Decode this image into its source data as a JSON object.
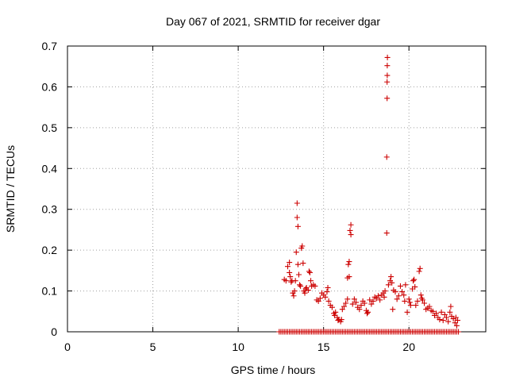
{
  "chart_data": {
    "type": "scatter",
    "title": "Day 067 of 2021, SRMTID for receiver dgar",
    "xlabel": "GPS time / hours",
    "ylabel": "SRMTID / TECUs",
    "xlim": [
      0,
      24.5
    ],
    "ylim": [
      0,
      0.7
    ],
    "xticks": [
      0,
      5,
      10,
      15,
      20
    ],
    "xtick_labels": [
      "0",
      "5",
      "10",
      "15",
      "20"
    ],
    "yticks": [
      0,
      0.1,
      0.2,
      0.3,
      0.4,
      0.5,
      0.6,
      0.7
    ],
    "ytick_labels": [
      "0",
      "0.1",
      "0.2",
      "0.3",
      "0.4",
      "0.5",
      "0.6",
      "0.7"
    ],
    "grid": true,
    "marker": "plus",
    "color": "#cc0000",
    "series": [
      {
        "name": "SRMTID",
        "points": [
          [
            12.4,
            0
          ],
          [
            12.5,
            0
          ],
          [
            12.6,
            0
          ],
          [
            12.7,
            0
          ],
          [
            12.8,
            0
          ],
          [
            12.9,
            0
          ],
          [
            13.0,
            0
          ],
          [
            13.1,
            0
          ],
          [
            13.2,
            0
          ],
          [
            13.3,
            0
          ],
          [
            13.4,
            0
          ],
          [
            13.5,
            0
          ],
          [
            13.6,
            0
          ],
          [
            13.7,
            0
          ],
          [
            13.8,
            0
          ],
          [
            13.9,
            0
          ],
          [
            14.0,
            0
          ],
          [
            14.1,
            0
          ],
          [
            14.2,
            0
          ],
          [
            14.3,
            0
          ],
          [
            14.4,
            0
          ],
          [
            14.5,
            0
          ],
          [
            14.6,
            0
          ],
          [
            14.7,
            0
          ],
          [
            14.8,
            0
          ],
          [
            14.9,
            0
          ],
          [
            15.0,
            0
          ],
          [
            15.1,
            0
          ],
          [
            15.2,
            0
          ],
          [
            15.3,
            0
          ],
          [
            15.4,
            0
          ],
          [
            15.5,
            0
          ],
          [
            15.6,
            0
          ],
          [
            15.7,
            0
          ],
          [
            15.8,
            0
          ],
          [
            15.9,
            0
          ],
          [
            16.0,
            0
          ],
          [
            16.1,
            0
          ],
          [
            16.2,
            0
          ],
          [
            16.3,
            0
          ],
          [
            16.4,
            0
          ],
          [
            16.5,
            0
          ],
          [
            16.6,
            0
          ],
          [
            16.7,
            0
          ],
          [
            16.8,
            0
          ],
          [
            16.9,
            0
          ],
          [
            17.0,
            0
          ],
          [
            17.1,
            0
          ],
          [
            17.2,
            0
          ],
          [
            17.3,
            0
          ],
          [
            17.4,
            0
          ],
          [
            17.5,
            0
          ],
          [
            17.6,
            0
          ],
          [
            17.7,
            0
          ],
          [
            17.8,
            0
          ],
          [
            17.9,
            0
          ],
          [
            18.0,
            0
          ],
          [
            18.1,
            0
          ],
          [
            18.2,
            0
          ],
          [
            18.3,
            0
          ],
          [
            18.4,
            0
          ],
          [
            18.5,
            0
          ],
          [
            18.6,
            0
          ],
          [
            18.7,
            0
          ],
          [
            18.8,
            0
          ],
          [
            18.9,
            0
          ],
          [
            19.0,
            0
          ],
          [
            19.1,
            0
          ],
          [
            19.2,
            0
          ],
          [
            19.3,
            0
          ],
          [
            19.4,
            0
          ],
          [
            19.5,
            0
          ],
          [
            19.6,
            0
          ],
          [
            19.7,
            0
          ],
          [
            19.8,
            0
          ],
          [
            19.9,
            0
          ],
          [
            20.0,
            0
          ],
          [
            20.1,
            0
          ],
          [
            20.2,
            0
          ],
          [
            20.3,
            0
          ],
          [
            20.4,
            0
          ],
          [
            20.5,
            0
          ],
          [
            20.6,
            0
          ],
          [
            20.7,
            0
          ],
          [
            20.8,
            0
          ],
          [
            20.9,
            0
          ],
          [
            21.0,
            0
          ],
          [
            21.1,
            0
          ],
          [
            21.2,
            0
          ],
          [
            21.3,
            0
          ],
          [
            21.4,
            0
          ],
          [
            21.5,
            0
          ],
          [
            21.6,
            0
          ],
          [
            21.7,
            0
          ],
          [
            21.8,
            0
          ],
          [
            21.9,
            0
          ],
          [
            22.0,
            0
          ],
          [
            22.1,
            0
          ],
          [
            22.2,
            0
          ],
          [
            22.3,
            0
          ],
          [
            22.4,
            0
          ],
          [
            22.5,
            0
          ],
          [
            22.6,
            0
          ],
          [
            22.7,
            0
          ],
          [
            22.8,
            0
          ],
          [
            22.9,
            0
          ],
          [
            12.7,
            0.128
          ],
          [
            12.8,
            0.125
          ],
          [
            12.9,
            0.16
          ],
          [
            13.0,
            0.17
          ],
          [
            13.0,
            0.145
          ],
          [
            13.05,
            0.135
          ],
          [
            13.1,
            0.122
          ],
          [
            13.15,
            0.125
          ],
          [
            13.2,
            0.095
          ],
          [
            13.25,
            0.088
          ],
          [
            13.3,
            0.1
          ],
          [
            13.35,
            0.125
          ],
          [
            13.4,
            0.195
          ],
          [
            13.45,
            0.315
          ],
          [
            13.45,
            0.28
          ],
          [
            13.5,
            0.258
          ],
          [
            13.5,
            0.165
          ],
          [
            13.55,
            0.14
          ],
          [
            13.6,
            0.115
          ],
          [
            13.65,
            0.112
          ],
          [
            13.7,
            0.205
          ],
          [
            13.75,
            0.21
          ],
          [
            13.8,
            0.168
          ],
          [
            13.85,
            0.1
          ],
          [
            13.9,
            0.095
          ],
          [
            13.95,
            0.105
          ],
          [
            14.0,
            0.108
          ],
          [
            14.1,
            0.102
          ],
          [
            14.15,
            0.148
          ],
          [
            14.2,
            0.145
          ],
          [
            14.25,
            0.125
          ],
          [
            14.3,
            0.112
          ],
          [
            14.4,
            0.115
          ],
          [
            14.5,
            0.112
          ],
          [
            14.6,
            0.078
          ],
          [
            14.7,
            0.075
          ],
          [
            14.8,
            0.082
          ],
          [
            14.9,
            0.095
          ],
          [
            15.0,
            0.09
          ],
          [
            15.1,
            0.085
          ],
          [
            15.2,
            0.098
          ],
          [
            15.25,
            0.108
          ],
          [
            15.3,
            0.075
          ],
          [
            15.4,
            0.065
          ],
          [
            15.5,
            0.06
          ],
          [
            15.6,
            0.045
          ],
          [
            15.65,
            0.04
          ],
          [
            15.7,
            0.048
          ],
          [
            15.8,
            0.035
          ],
          [
            15.85,
            0.028
          ],
          [
            15.9,
            0.03
          ],
          [
            16.0,
            0.025
          ],
          [
            16.05,
            0.03
          ],
          [
            16.1,
            0.055
          ],
          [
            16.2,
            0.062
          ],
          [
            16.3,
            0.07
          ],
          [
            16.4,
            0.08
          ],
          [
            16.4,
            0.132
          ],
          [
            16.45,
            0.165
          ],
          [
            16.5,
            0.172
          ],
          [
            16.5,
            0.135
          ],
          [
            16.55,
            0.248
          ],
          [
            16.6,
            0.262
          ],
          [
            16.6,
            0.238
          ],
          [
            16.7,
            0.068
          ],
          [
            16.8,
            0.08
          ],
          [
            16.9,
            0.072
          ],
          [
            17.0,
            0.06
          ],
          [
            17.1,
            0.055
          ],
          [
            17.2,
            0.065
          ],
          [
            17.3,
            0.075
          ],
          [
            17.4,
            0.07
          ],
          [
            17.5,
            0.052
          ],
          [
            17.55,
            0.045
          ],
          [
            17.6,
            0.048
          ],
          [
            17.7,
            0.078
          ],
          [
            17.8,
            0.068
          ],
          [
            17.9,
            0.075
          ],
          [
            18.0,
            0.085
          ],
          [
            18.1,
            0.082
          ],
          [
            18.2,
            0.088
          ],
          [
            18.3,
            0.078
          ],
          [
            18.4,
            0.09
          ],
          [
            18.5,
            0.095
          ],
          [
            18.55,
            0.085
          ],
          [
            18.6,
            0.1
          ],
          [
            18.7,
            0.242
          ],
          [
            18.7,
            0.428
          ],
          [
            18.72,
            0.572
          ],
          [
            18.72,
            0.612
          ],
          [
            18.73,
            0.628
          ],
          [
            18.73,
            0.652
          ],
          [
            18.74,
            0.672
          ],
          [
            18.8,
            0.115
          ],
          [
            18.9,
            0.125
          ],
          [
            18.95,
            0.135
          ],
          [
            19.0,
            0.12
          ],
          [
            19.05,
            0.055
          ],
          [
            19.1,
            0.102
          ],
          [
            19.2,
            0.098
          ],
          [
            19.3,
            0.08
          ],
          [
            19.4,
            0.088
          ],
          [
            19.5,
            0.112
          ],
          [
            19.6,
            0.098
          ],
          [
            19.7,
            0.09
          ],
          [
            19.75,
            0.075
          ],
          [
            19.8,
            0.115
          ],
          [
            19.9,
            0.048
          ],
          [
            20.0,
            0.08
          ],
          [
            20.05,
            0.072
          ],
          [
            20.1,
            0.065
          ],
          [
            20.2,
            0.105
          ],
          [
            20.25,
            0.125
          ],
          [
            20.3,
            0.128
          ],
          [
            20.35,
            0.11
          ],
          [
            20.4,
            0.065
          ],
          [
            20.5,
            0.075
          ],
          [
            20.6,
            0.148
          ],
          [
            20.65,
            0.155
          ],
          [
            20.7,
            0.09
          ],
          [
            20.75,
            0.082
          ],
          [
            20.8,
            0.078
          ],
          [
            20.9,
            0.07
          ],
          [
            21.0,
            0.055
          ],
          [
            21.1,
            0.058
          ],
          [
            21.2,
            0.062
          ],
          [
            21.3,
            0.052
          ],
          [
            21.4,
            0.05
          ],
          [
            21.5,
            0.04
          ],
          [
            21.6,
            0.045
          ],
          [
            21.7,
            0.035
          ],
          [
            21.8,
            0.03
          ],
          [
            21.9,
            0.048
          ],
          [
            22.0,
            0.028
          ],
          [
            22.1,
            0.042
          ],
          [
            22.2,
            0.035
          ],
          [
            22.3,
            0.025
          ],
          [
            22.4,
            0.048
          ],
          [
            22.45,
            0.062
          ],
          [
            22.5,
            0.038
          ],
          [
            22.6,
            0.032
          ],
          [
            22.7,
            0.022
          ],
          [
            22.75,
            0.035
          ],
          [
            22.8,
            0.015
          ],
          [
            22.85,
            0.028
          ]
        ]
      }
    ]
  }
}
